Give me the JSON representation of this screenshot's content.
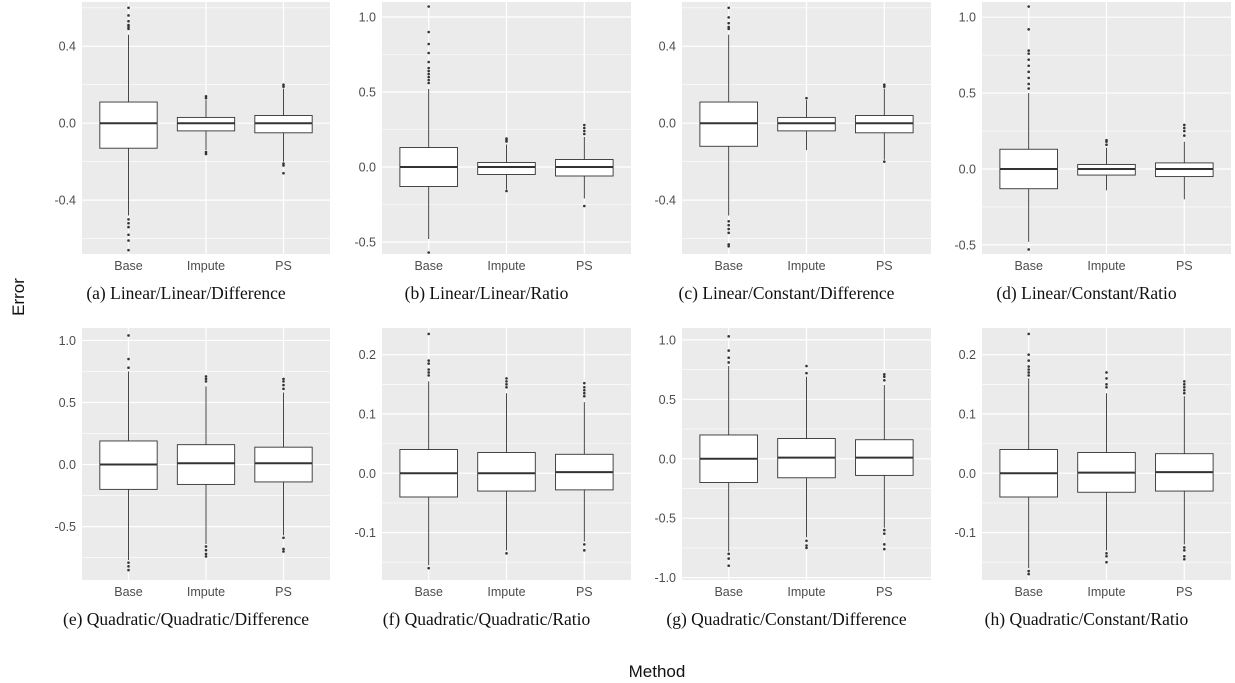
{
  "figure": {
    "ylabel": "Error",
    "xlabel": "Method",
    "colors": {
      "panel_bg": "#ebebeb",
      "grid": "#ffffff",
      "box_fill": "#ffffff",
      "box_line": "#333333",
      "tick_text": "#4d4d4d"
    }
  },
  "chart_data": [
    {
      "type": "box",
      "caption": "(a) Linear/Linear/Difference",
      "categories": [
        "Base",
        "Impute",
        "PS"
      ],
      "ylim": [
        -0.68,
        0.63
      ],
      "yticks": [
        -0.4,
        0.0,
        0.4
      ],
      "ytick_labels": [
        "-0.4",
        "0.0",
        "0.4"
      ],
      "grid": true,
      "boxes": [
        {
          "q1": -0.13,
          "median": 0.0,
          "q3": 0.11,
          "whisker_low": -0.48,
          "whisker_high": 0.46,
          "outliers": [
            0.6,
            0.56,
            0.53,
            0.51,
            0.5,
            0.49,
            -0.5,
            -0.52,
            -0.54,
            -0.58,
            -0.61,
            -0.66
          ]
        },
        {
          "q1": -0.04,
          "median": 0.0,
          "q3": 0.03,
          "whisker_low": -0.14,
          "whisker_high": 0.12,
          "outliers": [
            0.14,
            0.13,
            -0.15,
            -0.16
          ]
        },
        {
          "q1": -0.05,
          "median": 0.0,
          "q3": 0.04,
          "whisker_low": -0.2,
          "whisker_high": 0.18,
          "outliers": [
            0.2,
            0.19,
            -0.21,
            -0.22,
            -0.26
          ]
        }
      ]
    },
    {
      "type": "box",
      "caption": "(b) Linear/Linear/Ratio",
      "categories": [
        "Base",
        "Impute",
        "PS"
      ],
      "ylim": [
        -0.58,
        1.1
      ],
      "yticks": [
        -0.5,
        0.0,
        0.5,
        1.0
      ],
      "ytick_labels": [
        "-0.5",
        "0.0",
        "0.5",
        "1.0"
      ],
      "grid": true,
      "boxes": [
        {
          "q1": -0.13,
          "median": 0.0,
          "q3": 0.13,
          "whisker_low": -0.48,
          "whisker_high": 0.52,
          "outliers": [
            1.07,
            0.9,
            0.82,
            0.76,
            0.7,
            0.66,
            0.64,
            0.62,
            0.6,
            0.58,
            0.56,
            -0.57
          ]
        },
        {
          "q1": -0.05,
          "median": 0.0,
          "q3": 0.03,
          "whisker_low": -0.15,
          "whisker_high": 0.15,
          "outliers": [
            0.19,
            0.18,
            0.17,
            -0.16
          ]
        },
        {
          "q1": -0.06,
          "median": 0.0,
          "q3": 0.05,
          "whisker_low": -0.21,
          "whisker_high": 0.2,
          "outliers": [
            0.28,
            0.26,
            0.24,
            0.22,
            -0.26
          ]
        }
      ]
    },
    {
      "type": "box",
      "caption": "(c) Linear/Constant/Difference",
      "categories": [
        "Base",
        "Impute",
        "PS"
      ],
      "ylim": [
        -0.68,
        0.63
      ],
      "yticks": [
        -0.4,
        0.0,
        0.4
      ],
      "ytick_labels": [
        "-0.4",
        "0.0",
        "0.4"
      ],
      "grid": true,
      "boxes": [
        {
          "q1": -0.12,
          "median": 0.0,
          "q3": 0.11,
          "whisker_low": -0.48,
          "whisker_high": 0.46,
          "outliers": [
            0.6,
            0.55,
            0.52,
            0.5,
            0.49,
            -0.51,
            -0.53,
            -0.55,
            -0.57,
            -0.63,
            -0.64
          ]
        },
        {
          "q1": -0.04,
          "median": 0.0,
          "q3": 0.03,
          "whisker_low": -0.14,
          "whisker_high": 0.12,
          "outliers": [
            0.13
          ]
        },
        {
          "q1": -0.05,
          "median": 0.0,
          "q3": 0.04,
          "whisker_low": -0.19,
          "whisker_high": 0.18,
          "outliers": [
            0.2,
            0.19,
            -0.2
          ]
        }
      ]
    },
    {
      "type": "box",
      "caption": "(d) Linear/Constant/Ratio",
      "categories": [
        "Base",
        "Impute",
        "PS"
      ],
      "ylim": [
        -0.56,
        1.1
      ],
      "yticks": [
        -0.5,
        0.0,
        0.5,
        1.0
      ],
      "ytick_labels": [
        "-0.5",
        "0.0",
        "0.5",
        "1.0"
      ],
      "grid": true,
      "boxes": [
        {
          "q1": -0.13,
          "median": 0.0,
          "q3": 0.13,
          "whisker_low": -0.48,
          "whisker_high": 0.5,
          "outliers": [
            1.07,
            0.92,
            0.78,
            0.76,
            0.72,
            0.68,
            0.64,
            0.6,
            0.56,
            0.53,
            -0.53
          ]
        },
        {
          "q1": -0.04,
          "median": 0.0,
          "q3": 0.03,
          "whisker_low": -0.14,
          "whisker_high": 0.14,
          "outliers": [
            0.19,
            0.18,
            0.16
          ]
        },
        {
          "q1": -0.05,
          "median": 0.0,
          "q3": 0.04,
          "whisker_low": -0.2,
          "whisker_high": 0.18,
          "outliers": [
            0.29,
            0.27,
            0.25,
            0.22
          ]
        }
      ]
    },
    {
      "type": "box",
      "caption": "(e) Quadratic/Quadratic/Difference",
      "categories": [
        "Base",
        "Impute",
        "PS"
      ],
      "ylim": [
        -0.93,
        1.1
      ],
      "yticks": [
        -0.5,
        0.0,
        0.5,
        1.0
      ],
      "ytick_labels": [
        "-0.5",
        "0.0",
        "0.5",
        "1.0"
      ],
      "grid": true,
      "boxes": [
        {
          "q1": -0.2,
          "median": 0.0,
          "q3": 0.19,
          "whisker_low": -0.77,
          "whisker_high": 0.75,
          "outliers": [
            1.04,
            0.85,
            0.78,
            -0.79,
            -0.82,
            -0.85
          ]
        },
        {
          "q1": -0.16,
          "median": 0.01,
          "q3": 0.16,
          "whisker_low": -0.64,
          "whisker_high": 0.63,
          "outliers": [
            0.71,
            0.69,
            0.67,
            -0.66,
            -0.69,
            -0.72,
            -0.74
          ]
        },
        {
          "q1": -0.14,
          "median": 0.01,
          "q3": 0.14,
          "whisker_low": -0.57,
          "whisker_high": 0.58,
          "outliers": [
            0.69,
            0.67,
            0.64,
            0.61,
            -0.59,
            -0.68,
            -0.7
          ]
        }
      ]
    },
    {
      "type": "box",
      "caption": "(f) Quadratic/Quadratic/Ratio",
      "categories": [
        "Base",
        "Impute",
        "PS"
      ],
      "ylim": [
        -0.18,
        0.245
      ],
      "yticks": [
        -0.1,
        0.0,
        0.1,
        0.2
      ],
      "ytick_labels": [
        "-0.1",
        "0.0",
        "0.1",
        "0.2"
      ],
      "grid": true,
      "boxes": [
        {
          "q1": -0.04,
          "median": 0.0,
          "q3": 0.04,
          "whisker_low": -0.155,
          "whisker_high": 0.155,
          "outliers": [
            0.235,
            0.19,
            0.185,
            0.175,
            0.17,
            0.165,
            -0.16
          ]
        },
        {
          "q1": -0.03,
          "median": 0.0,
          "q3": 0.035,
          "whisker_low": -0.13,
          "whisker_high": 0.135,
          "outliers": [
            0.16,
            0.155,
            0.15,
            0.145,
            -0.135
          ]
        },
        {
          "q1": -0.028,
          "median": 0.002,
          "q3": 0.032,
          "whisker_low": -0.115,
          "whisker_high": 0.12,
          "outliers": [
            0.152,
            0.145,
            0.14,
            0.135,
            0.13,
            -0.12,
            -0.13
          ]
        }
      ]
    },
    {
      "type": "box",
      "caption": "(g) Quadratic/Constant/Difference",
      "categories": [
        "Base",
        "Impute",
        "PS"
      ],
      "ylim": [
        -1.02,
        1.1
      ],
      "yticks": [
        -1.0,
        -0.5,
        0.0,
        0.5,
        1.0
      ],
      "ytick_labels": [
        "-1.0",
        "-0.5",
        "0.0",
        "0.5",
        "1.0"
      ],
      "grid": true,
      "boxes": [
        {
          "q1": -0.2,
          "median": 0.0,
          "q3": 0.2,
          "whisker_low": -0.78,
          "whisker_high": 0.78,
          "outliers": [
            1.03,
            0.91,
            0.85,
            0.81,
            -0.8,
            -0.84,
            -0.9
          ]
        },
        {
          "q1": -0.16,
          "median": 0.01,
          "q3": 0.17,
          "whisker_low": -0.66,
          "whisker_high": 0.69,
          "outliers": [
            0.78,
            0.72,
            -0.69,
            -0.73,
            -0.75
          ]
        },
        {
          "q1": -0.14,
          "median": 0.01,
          "q3": 0.16,
          "whisker_low": -0.58,
          "whisker_high": 0.62,
          "outliers": [
            0.71,
            0.69,
            0.66,
            -0.6,
            -0.63,
            -0.72,
            -0.76
          ]
        }
      ]
    },
    {
      "type": "box",
      "caption": "(h) Quadratic/Constant/Ratio",
      "categories": [
        "Base",
        "Impute",
        "PS"
      ],
      "ylim": [
        -0.18,
        0.245
      ],
      "yticks": [
        -0.1,
        0.0,
        0.1,
        0.2
      ],
      "ytick_labels": [
        "-0.1",
        "0.0",
        "0.1",
        "0.2"
      ],
      "grid": true,
      "boxes": [
        {
          "q1": -0.04,
          "median": 0.0,
          "q3": 0.04,
          "whisker_low": -0.16,
          "whisker_high": 0.16,
          "outliers": [
            0.235,
            0.2,
            0.19,
            0.18,
            0.175,
            0.17,
            0.165,
            -0.165,
            -0.17
          ]
        },
        {
          "q1": -0.032,
          "median": 0.001,
          "q3": 0.035,
          "whisker_low": -0.13,
          "whisker_high": 0.135,
          "outliers": [
            0.17,
            0.16,
            0.15,
            0.145,
            -0.135,
            -0.14,
            -0.15
          ]
        },
        {
          "q1": -0.03,
          "median": 0.002,
          "q3": 0.033,
          "whisker_low": -0.12,
          "whisker_high": 0.13,
          "outliers": [
            0.155,
            0.15,
            0.145,
            0.14,
            0.135,
            -0.125,
            -0.13,
            -0.14,
            -0.145
          ]
        }
      ]
    }
  ]
}
